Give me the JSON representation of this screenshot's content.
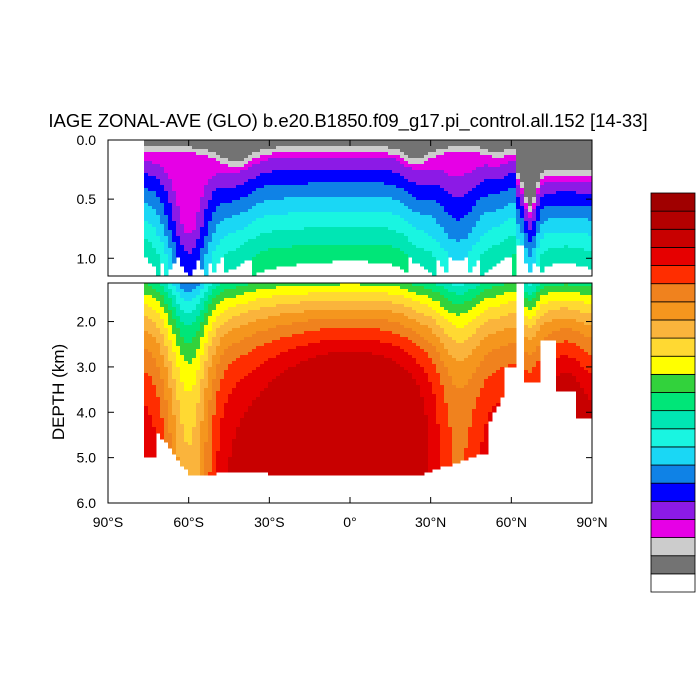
{
  "chart_data": {
    "type": "contour",
    "title": "IAGE ZONAL-AVE (GLO) b.e20.B1850.f09_g17.pi_control.all.152 [14-33]",
    "ylabel": "DEPTH (km)",
    "xlabel": "",
    "x_ticks": [
      {
        "value": -90,
        "label": "90°S"
      },
      {
        "value": -60,
        "label": "60°S"
      },
      {
        "value": -30,
        "label": "30°S"
      },
      {
        "value": 0,
        "label": "0°"
      },
      {
        "value": 30,
        "label": "30°N"
      },
      {
        "value": 60,
        "label": "60°N"
      },
      {
        "value": 90,
        "label": "90°N"
      }
    ],
    "upper_panel": {
      "ylim": [
        0.0,
        1.15
      ],
      "y_ticks": [
        "0.0",
        "0.5",
        "1.0"
      ],
      "tick_values": [
        0.0,
        0.5,
        1.0
      ]
    },
    "lower_panel": {
      "ylim": [
        1.15,
        6.0
      ],
      "y_ticks": [
        "2.0",
        "3.0",
        "4.0",
        "5.0",
        "6.0"
      ],
      "tick_values": [
        2.0,
        3.0,
        4.0,
        5.0,
        6.0
      ]
    },
    "colorbar": {
      "labels_shown": false,
      "colors": [
        "#ffffff",
        "#737373",
        "#cccccc",
        "#e600e6",
        "#8c1ae6",
        "#0000ff",
        "#0f82e6",
        "#1ad7f5",
        "#19f5e1",
        "#00e6b4",
        "#00e678",
        "#32d23c",
        "#ffff00",
        "#ffd932",
        "#fab43c",
        "#f5961e",
        "#f0821e",
        "#ff2d00",
        "#e60000",
        "#c80000",
        "#b40000",
        "#a00000"
      ]
    },
    "level_colors": [
      "#ffffff",
      "#737373",
      "#cccccc",
      "#e600e6",
      "#8c1ae6",
      "#0000ff",
      "#0f82e6",
      "#1ad7f5",
      "#19f5e1",
      "#00e6b4",
      "#00e678",
      "#32d23c",
      "#ffff00",
      "#ffd932",
      "#fab43c",
      "#f5961e",
      "#f0821e",
      "#ff2d00",
      "#e60000",
      "#c80000"
    ]
  }
}
